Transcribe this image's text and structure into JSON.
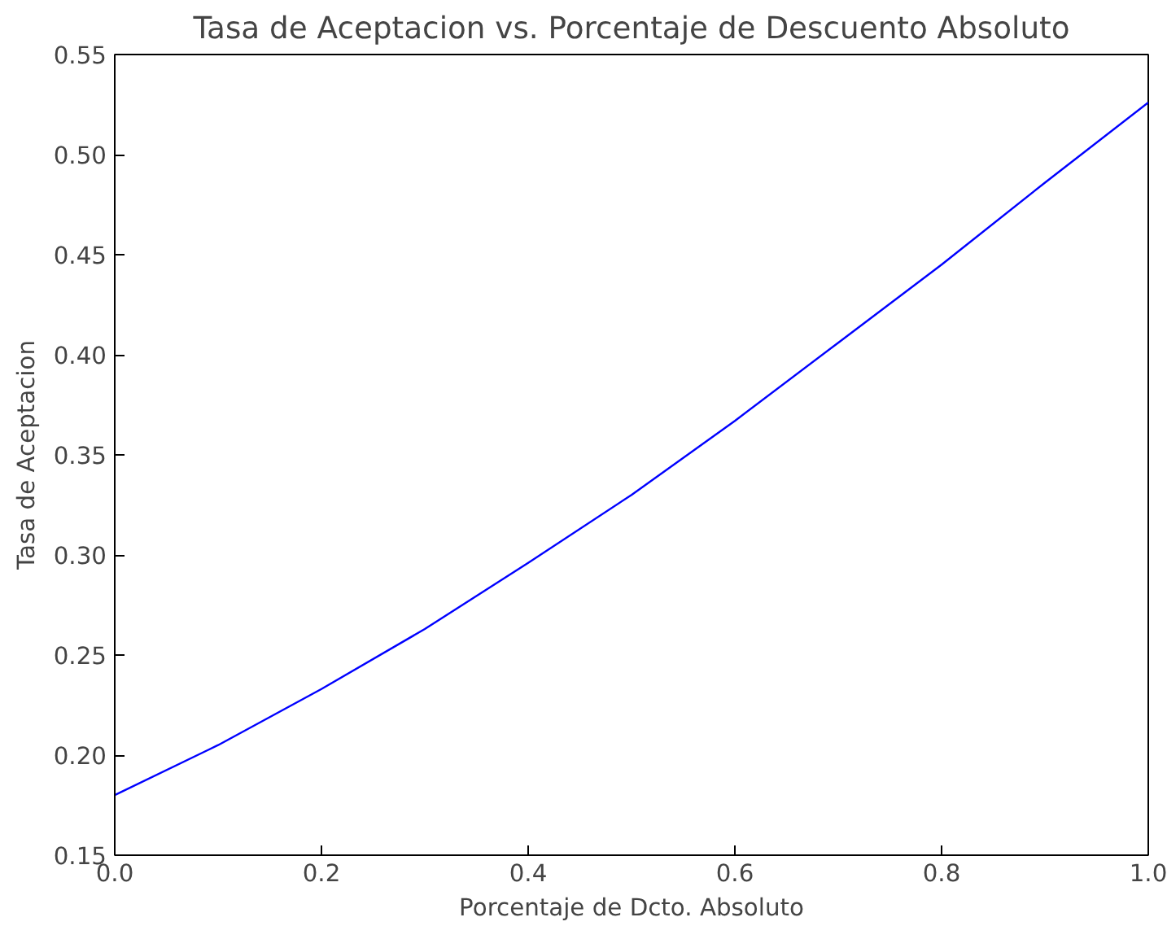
{
  "chart_data": {
    "type": "line",
    "title": "Tasa de Aceptacion vs. Porcentaje de Descuento Absoluto",
    "xlabel": "Porcentaje de Dcto. Absoluto",
    "ylabel": "Tasa de Aceptacion",
    "x": [
      0.0,
      0.1,
      0.2,
      0.3,
      0.4,
      0.5,
      0.6,
      0.7,
      0.8,
      0.9,
      1.0
    ],
    "series": [
      {
        "color": "#0000ff",
        "values": [
          0.18,
          0.205,
          0.233,
          0.263,
          0.296,
          0.33,
          0.367,
          0.406,
          0.445,
          0.486,
          0.526
        ]
      }
    ],
    "xlim": [
      0.0,
      1.0
    ],
    "ylim": [
      0.15,
      0.55
    ],
    "xticks": [
      {
        "value": 0.0,
        "label": "0.0"
      },
      0.2,
      0.4,
      0.6,
      0.8,
      {
        "value": 1.0,
        "label": "1.0"
      }
    ],
    "yticks": [
      0.15,
      {
        "value": 0.2,
        "label": "0.20"
      },
      0.25,
      {
        "value": 0.3,
        "label": "0.30"
      },
      0.35,
      {
        "value": 0.4,
        "label": "0.40"
      },
      0.45,
      {
        "value": 0.5,
        "label": "0.50"
      },
      0.55
    ],
    "grid": false
  }
}
